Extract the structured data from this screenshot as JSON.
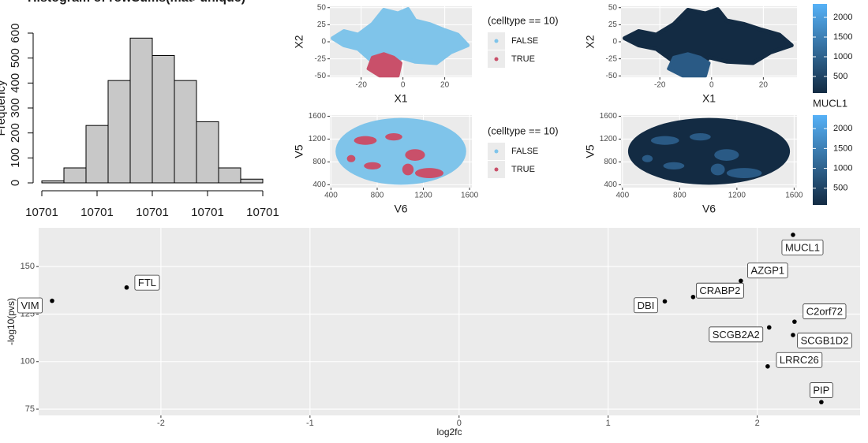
{
  "chart_data": [
    {
      "type": "histogram",
      "title": "Histogram of rowSums(mat>unique)",
      "y_label": "Frequency",
      "bins": [
        10700.6,
        10700.68,
        10700.76,
        10700.84,
        10700.92,
        10701.0,
        10701.08,
        10701.16,
        10701.24,
        10701.32,
        10701.4
      ],
      "values": [
        8,
        60,
        230,
        410,
        580,
        510,
        410,
        245,
        60,
        15
      ],
      "color": "#c8c8c8",
      "xlim": [
        10700.6,
        10701.4
      ],
      "xticks": [
        {
          "value": 10700.6,
          "label": "10701"
        },
        {
          "value": 10700.8,
          "label": "10701"
        },
        {
          "value": 10701.0,
          "label": "10701"
        },
        {
          "value": 10701.2,
          "label": "10701"
        },
        {
          "value": 10701.4,
          "label": "10701"
        }
      ],
      "ylim": [
        0,
        600
      ],
      "yticks": [
        0,
        100,
        200,
        300,
        400,
        500,
        600
      ]
    },
    {
      "type": "scatter",
      "x_label": "X1",
      "y_label": "X2",
      "xlim": [
        -35,
        33
      ],
      "xticks": [
        -20,
        0,
        20
      ],
      "ylim": [
        -52,
        52
      ],
      "yticks": [
        -50,
        -25,
        0,
        25,
        50
      ],
      "grid": true,
      "legend": {
        "title": "(celltype == 10)",
        "entries": [
          {
            "name": "FALSE",
            "color": "#7fc4ea"
          },
          {
            "name": "TRUE",
            "color": "#c9506a"
          }
        ]
      }
    },
    {
      "type": "scatter",
      "x_label": "X1",
      "y_label": "X2",
      "xlim": [
        -35,
        33
      ],
      "xticks": [
        -20,
        0,
        20
      ],
      "ylim": [
        -52,
        52
      ],
      "yticks": [
        -50,
        -25,
        0,
        25,
        50
      ],
      "grid": true,
      "colorbar": {
        "lim": [
          80,
          2340
        ],
        "ticks": [
          500,
          1000,
          1500,
          2000
        ],
        "colors": [
          "#132b43",
          "#56b1f7"
        ]
      }
    },
    {
      "type": "scatter",
      "x_label": "V6",
      "y_label": "V5",
      "xlim": [
        390,
        1620
      ],
      "xticks": [
        400,
        800,
        1200,
        1600
      ],
      "ylim": [
        350,
        1620
      ],
      "yticks": [
        400,
        800,
        1200,
        1600
      ],
      "grid": true,
      "legend": {
        "title": "(celltype == 10)",
        "entries": [
          {
            "name": "FALSE",
            "color": "#7fc4ea"
          },
          {
            "name": "TRUE",
            "color": "#c9506a"
          }
        ]
      }
    },
    {
      "type": "scatter",
      "x_label": "V6",
      "y_label": "V5",
      "xlim": [
        390,
        1620
      ],
      "xticks": [
        400,
        800,
        1200,
        1600
      ],
      "ylim": [
        350,
        1620
      ],
      "yticks": [
        400,
        800,
        1200,
        1600
      ],
      "grid": true,
      "colorbar": {
        "title": "MUCL1",
        "lim": [
          80,
          2340
        ],
        "ticks": [
          500,
          1000,
          1500,
          2000
        ],
        "colors": [
          "#132b43",
          "#56b1f7"
        ]
      }
    },
    {
      "type": "volcano",
      "x_label": "log2fc",
      "y_label": "-log10(pvs)",
      "xlim": [
        -2.82,
        2.69
      ],
      "xticks": [
        -2,
        -1,
        0,
        1,
        2
      ],
      "ylim": [
        71.7,
        170.4
      ],
      "yticks": [
        75,
        100,
        125,
        150
      ],
      "grid": true,
      "color": "#000000",
      "labels": [
        "VIM",
        "FTL",
        "DBI",
        "CRABP2",
        "AZGP1",
        "MUCL1",
        "C2orf72",
        "SCGB2A2",
        "SCGB1D2",
        "LRRC26",
        "PIP"
      ],
      "x": [
        -2.73,
        -2.23,
        1.38,
        1.57,
        1.89,
        2.24,
        2.25,
        2.08,
        2.24,
        2.07,
        2.43
      ],
      "values": [
        132,
        139,
        131.7,
        134,
        142.5,
        166.7,
        121,
        118,
        114,
        97.5,
        78.7
      ]
    }
  ]
}
